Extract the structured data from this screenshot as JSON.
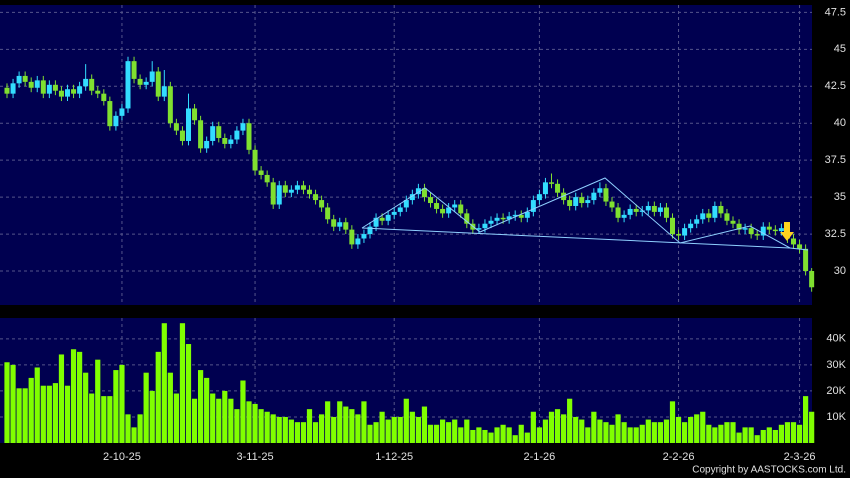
{
  "chart_data": [
    {
      "type": "candlestick",
      "open": [
        42.4,
        42.0,
        42.7,
        43.2,
        42.8,
        42.4,
        42.9,
        42.0,
        42.6,
        42.2,
        41.8,
        42.3,
        42.0,
        42.5,
        43.0,
        42.2,
        42.0,
        41.5,
        39.8,
        40.5,
        41.0,
        44.2,
        43.0,
        42.6,
        42.8,
        43.5,
        41.8,
        42.5,
        40.0,
        39.5,
        38.8,
        41.0,
        40.2,
        38.3,
        38.8,
        39.8,
        39.0,
        38.6,
        38.9,
        39.5,
        40.0,
        38.2,
        36.8,
        36.5,
        36.0,
        34.5,
        35.8,
        35.3,
        35.5,
        35.8,
        35.5,
        35.2,
        34.8,
        34.3,
        33.5,
        33.0,
        33.3,
        32.8,
        31.8,
        32.2,
        32.5,
        33.0,
        33.6,
        33.4,
        33.8,
        34.0,
        34.3,
        34.8,
        35.2,
        35.6,
        35.0,
        34.6,
        34.2,
        33.9,
        34.3,
        34.5,
        33.9,
        33.2,
        32.8,
        32.9,
        33.2,
        33.4,
        33.6,
        33.5,
        33.7,
        33.8,
        33.6,
        34.0,
        34.8,
        35.2,
        36.0,
        35.9,
        35.3,
        34.8,
        34.4,
        35.0,
        34.6,
        34.8,
        35.3,
        35.6,
        34.7,
        34.3,
        33.6,
        33.8,
        34.2,
        34.0,
        34.1,
        34.4,
        34.0,
        34.3,
        33.6,
        32.5,
        32.4,
        32.9,
        33.2,
        33.5,
        33.9,
        33.6,
        34.4,
        33.9,
        33.4,
        33.2,
        32.8,
        32.9,
        32.5,
        32.4,
        33.0,
        32.8,
        32.7,
        32.9,
        32.2,
        31.8,
        31.5,
        30.0
      ],
      "high": [
        42.7,
        43.0,
        43.5,
        43.5,
        43.1,
        43.2,
        43.2,
        42.9,
        42.9,
        42.5,
        42.6,
        42.6,
        42.8,
        44.0,
        43.3,
        42.5,
        42.3,
        41.8,
        40.8,
        41.3,
        44.5,
        44.5,
        43.3,
        43.1,
        44.2,
        43.8,
        43.6,
        42.8,
        40.3,
        39.8,
        42.0,
        41.3,
        40.5,
        39.1,
        40.1,
        40.1,
        39.3,
        39.2,
        39.8,
        40.3,
        40.3,
        38.5,
        37.1,
        36.8,
        36.3,
        36.1,
        36.1,
        35.8,
        36.1,
        36.1,
        35.8,
        35.5,
        35.1,
        34.6,
        33.8,
        33.6,
        33.6,
        33.1,
        32.5,
        32.8,
        33.3,
        33.9,
        33.9,
        34.1,
        34.3,
        34.6,
        35.1,
        35.5,
        35.9,
        35.9,
        35.3,
        34.9,
        34.5,
        34.6,
        34.8,
        34.8,
        34.2,
        33.5,
        33.2,
        33.5,
        33.7,
        33.9,
        33.9,
        34.0,
        34.1,
        34.1,
        34.3,
        35.1,
        35.5,
        36.3,
        36.6,
        36.2,
        35.6,
        35.1,
        35.3,
        35.3,
        35.1,
        35.6,
        36.0,
        35.9,
        35.0,
        34.6,
        34.1,
        34.5,
        34.5,
        34.4,
        34.7,
        34.7,
        34.6,
        34.6,
        33.9,
        32.8,
        33.2,
        33.5,
        33.8,
        34.2,
        34.2,
        34.7,
        34.7,
        34.2,
        33.7,
        33.5,
        33.2,
        33.2,
        32.8,
        33.3,
        33.3,
        33.1,
        33.2,
        33.2,
        32.5,
        32.1,
        31.8,
        30.2
      ],
      "low": [
        41.7,
        41.7,
        42.4,
        42.5,
        42.1,
        42.1,
        41.7,
        41.7,
        41.9,
        41.5,
        41.5,
        41.7,
        41.7,
        42.2,
        41.9,
        41.7,
        41.2,
        39.5,
        39.5,
        40.2,
        40.7,
        42.7,
        42.3,
        42.3,
        42.5,
        41.5,
        41.5,
        39.7,
        39.2,
        38.5,
        38.5,
        39.9,
        38.0,
        38.0,
        38.5,
        38.7,
        38.3,
        38.3,
        38.6,
        39.2,
        37.9,
        36.5,
        36.2,
        35.7,
        34.2,
        34.2,
        35.0,
        35.0,
        35.2,
        35.2,
        34.9,
        34.5,
        34.0,
        33.2,
        32.7,
        32.7,
        32.5,
        31.5,
        31.5,
        31.9,
        32.2,
        32.7,
        33.1,
        33.1,
        33.5,
        33.7,
        34.0,
        34.5,
        34.9,
        34.7,
        34.3,
        33.9,
        33.6,
        33.6,
        34.0,
        33.6,
        32.9,
        32.5,
        32.5,
        32.6,
        32.9,
        33.1,
        33.2,
        33.2,
        33.4,
        33.3,
        33.3,
        33.7,
        34.5,
        34.9,
        35.6,
        35.0,
        34.5,
        34.1,
        34.1,
        34.3,
        34.3,
        34.5,
        35.0,
        34.4,
        34.0,
        33.3,
        33.3,
        33.5,
        33.7,
        33.7,
        33.8,
        33.7,
        33.7,
        33.3,
        32.2,
        32.1,
        32.1,
        32.6,
        32.9,
        33.2,
        33.3,
        33.3,
        33.6,
        33.1,
        32.9,
        32.5,
        32.5,
        32.2,
        32.1,
        32.1,
        32.5,
        32.4,
        32.4,
        31.9,
        31.5,
        31.2,
        29.7,
        28.6
      ],
      "close": [
        42.0,
        42.7,
        43.2,
        42.8,
        42.4,
        42.9,
        42.0,
        42.6,
        42.2,
        41.8,
        42.3,
        42.0,
        42.5,
        43.0,
        42.2,
        42.0,
        41.5,
        39.8,
        40.5,
        41.0,
        44.2,
        43.0,
        42.6,
        42.8,
        43.5,
        41.8,
        42.5,
        40.0,
        39.5,
        38.8,
        41.0,
        40.2,
        38.3,
        38.8,
        39.8,
        39.0,
        38.6,
        38.9,
        39.5,
        40.0,
        38.2,
        36.8,
        36.5,
        36.0,
        34.5,
        35.8,
        35.3,
        35.5,
        35.8,
        35.5,
        35.2,
        34.8,
        34.3,
        33.5,
        33.0,
        33.3,
        32.8,
        31.8,
        32.2,
        32.5,
        33.0,
        33.6,
        33.4,
        33.8,
        34.0,
        34.3,
        34.8,
        35.2,
        35.6,
        35.0,
        34.6,
        34.2,
        33.9,
        34.3,
        34.5,
        33.9,
        33.2,
        32.8,
        32.9,
        33.2,
        33.4,
        33.6,
        33.5,
        33.7,
        33.8,
        33.6,
        34.0,
        34.8,
        35.2,
        36.0,
        35.9,
        35.3,
        34.8,
        34.4,
        35.0,
        34.6,
        34.8,
        35.3,
        35.6,
        34.7,
        34.3,
        33.6,
        33.8,
        34.2,
        34.0,
        34.1,
        34.4,
        34.0,
        34.3,
        33.6,
        32.5,
        32.4,
        32.9,
        33.2,
        33.5,
        33.9,
        33.6,
        34.4,
        33.9,
        33.4,
        33.2,
        32.8,
        32.9,
        32.5,
        32.4,
        33.0,
        32.8,
        32.7,
        32.9,
        32.2,
        31.8,
        31.5,
        30.0,
        28.9
      ],
      "up_color": "#33ddff",
      "down_color": "#80e030",
      "ylim": [
        27.7,
        48
      ],
      "yticks": [
        30,
        32.5,
        35,
        37.5,
        40,
        42.5,
        45,
        47.5
      ],
      "grid": true
    },
    {
      "type": "bar",
      "categories": [
        null,
        null,
        null,
        null,
        null,
        null,
        null,
        null,
        null,
        null,
        null,
        null,
        null,
        null,
        null,
        null,
        null,
        null,
        null,
        "2-10-25",
        null,
        null,
        null,
        null,
        null,
        null,
        null,
        null,
        null,
        null,
        null,
        null,
        null,
        null,
        null,
        null,
        null,
        null,
        null,
        null,
        null,
        "3-11-25",
        null,
        null,
        null,
        null,
        null,
        null,
        null,
        null,
        null,
        null,
        null,
        null,
        null,
        null,
        null,
        null,
        null,
        null,
        null,
        null,
        null,
        null,
        "1-12-25",
        null,
        null,
        null,
        null,
        null,
        null,
        null,
        null,
        null,
        null,
        null,
        null,
        null,
        null,
        null,
        null,
        null,
        null,
        null,
        null,
        null,
        null,
        null,
        "2-1-26",
        null,
        null,
        null,
        null,
        null,
        null,
        null,
        null,
        null,
        null,
        null,
        null,
        null,
        null,
        null,
        null,
        null,
        null,
        null,
        null,
        null,
        null,
        "2-2-26",
        null,
        null,
        null,
        null,
        null,
        null,
        null,
        null,
        null,
        null,
        null,
        null,
        null,
        null,
        null,
        null,
        null,
        null,
        null,
        "2-3-26",
        null,
        null
      ],
      "values": [
        31000,
        30000,
        21000,
        21000,
        25000,
        29000,
        22000,
        22000,
        23000,
        34000,
        22000,
        36000,
        35000,
        27000,
        19000,
        32000,
        18000,
        18000,
        28000,
        30000,
        11000,
        6000,
        11000,
        27000,
        20000,
        35000,
        46000,
        27000,
        19000,
        46000,
        38000,
        17000,
        28000,
        25000,
        19000,
        17000,
        20000,
        17000,
        13000,
        24000,
        16000,
        15000,
        13000,
        12000,
        11000,
        10000,
        10000,
        9000,
        8000,
        8000,
        13000,
        8000,
        11000,
        16000,
        10000,
        16000,
        14000,
        13000,
        11000,
        16000,
        7000,
        8000,
        12000,
        9000,
        10000,
        10000,
        17000,
        12000,
        10000,
        14000,
        7000,
        7000,
        9000,
        8000,
        9000,
        6000,
        9000,
        5000,
        6000,
        5000,
        4000,
        6000,
        7000,
        6000,
        3000,
        7000,
        4000,
        12000,
        6000,
        9000,
        12000,
        13000,
        11000,
        17000,
        10000,
        9000,
        6000,
        12000,
        9000,
        8000,
        7000,
        11000,
        8000,
        6000,
        6000,
        7000,
        9000,
        8000,
        8000,
        9000,
        16000,
        10000,
        8000,
        10000,
        11000,
        12000,
        7000,
        6000,
        7000,
        8000,
        8000,
        4000,
        6000,
        6000,
        3000,
        5000,
        6000,
        5000,
        7000,
        8000,
        8000,
        7000,
        18000,
        12000
      ],
      "color": "#80ff00",
      "ylim": [
        0,
        48000
      ],
      "yticks": [
        {
          "value": 10000,
          "label": "10K"
        },
        {
          "value": 20000,
          "label": "20K"
        },
        {
          "value": 30000,
          "label": "30K"
        },
        {
          "value": 40000,
          "label": "40K"
        }
      ],
      "grid": true
    }
  ],
  "copyright": "Copyright by AASTOCKS.com Ltd."
}
